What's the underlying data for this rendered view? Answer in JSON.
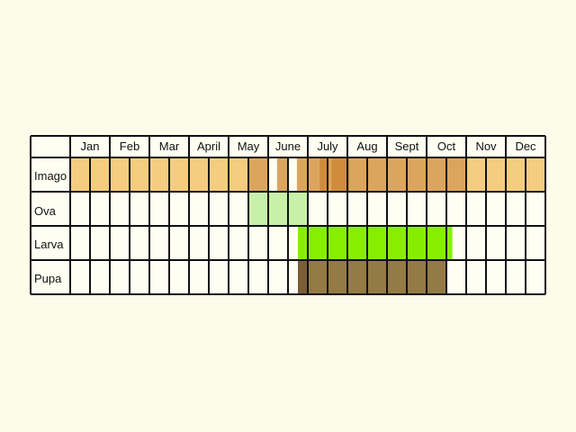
{
  "months": [
    "Jan",
    "Feb",
    "Mar",
    "Apr",
    "May",
    "June",
    "July",
    "Aug",
    "Sept",
    "Oct",
    "Nov",
    "Dec"
  ],
  "month_labels": [
    "Jan",
    "Feb",
    "Mar",
    "April",
    "May",
    "June",
    "July",
    "Aug",
    "Sept",
    "Oct",
    "Nov",
    "Dec"
  ],
  "stages": [
    "Imago",
    "Ova",
    "Larva",
    "Pupa"
  ],
  "colors": {
    "background": "#fdfbe9",
    "grid": "#111111",
    "cell_empty": "#fffef2",
    "imago_light": "#f4cd7f",
    "imago_mid": "#dba55d",
    "imago_dark": "#cf8c3a",
    "ova": "#c8f0a8",
    "larva": "#88ee00",
    "pupa": "#947a44",
    "pupa_edge": "#7a5e35"
  },
  "chart_data": {
    "type": "table",
    "columns": [
      "Jan",
      "Feb",
      "Mar",
      "April",
      "May",
      "June",
      "July",
      "Aug",
      "Sept",
      "Oct",
      "Nov",
      "Dec"
    ],
    "rows": [
      "Imago",
      "Ova",
      "Larva",
      "Pupa"
    ],
    "periods_per_month": 2,
    "fills": [
      {
        "row": "Imago",
        "from_period": 0,
        "to_period": 4,
        "shade": "imago_light"
      },
      {
        "row": "Imago",
        "from_period": 4,
        "to_period": 9,
        "shade": "imago_light"
      },
      {
        "row": "Imago",
        "from_period": 9,
        "to_period": 12,
        "shade": "imago_mid"
      },
      {
        "row": "Imago",
        "from_period": 12,
        "to_period": 14,
        "shade": "imago_mid"
      },
      {
        "row": "Imago",
        "from_period": 14,
        "to_period": 20,
        "shade": "imago_mid"
      },
      {
        "row": "Imago",
        "from_period": 20,
        "to_period": 22,
        "shade": "imago_light"
      },
      {
        "row": "Imago",
        "from_period": 22,
        "to_period": 24,
        "shade": "imago_light"
      },
      {
        "row": "Ova",
        "from_period": 9,
        "to_period": 12,
        "shade": "ova"
      },
      {
        "row": "Larva",
        "from_period": 11.5,
        "to_period": 19.3,
        "shade": "larva"
      },
      {
        "row": "Pupa",
        "from_period": 12,
        "to_period": 19,
        "shade": "pupa"
      }
    ]
  }
}
